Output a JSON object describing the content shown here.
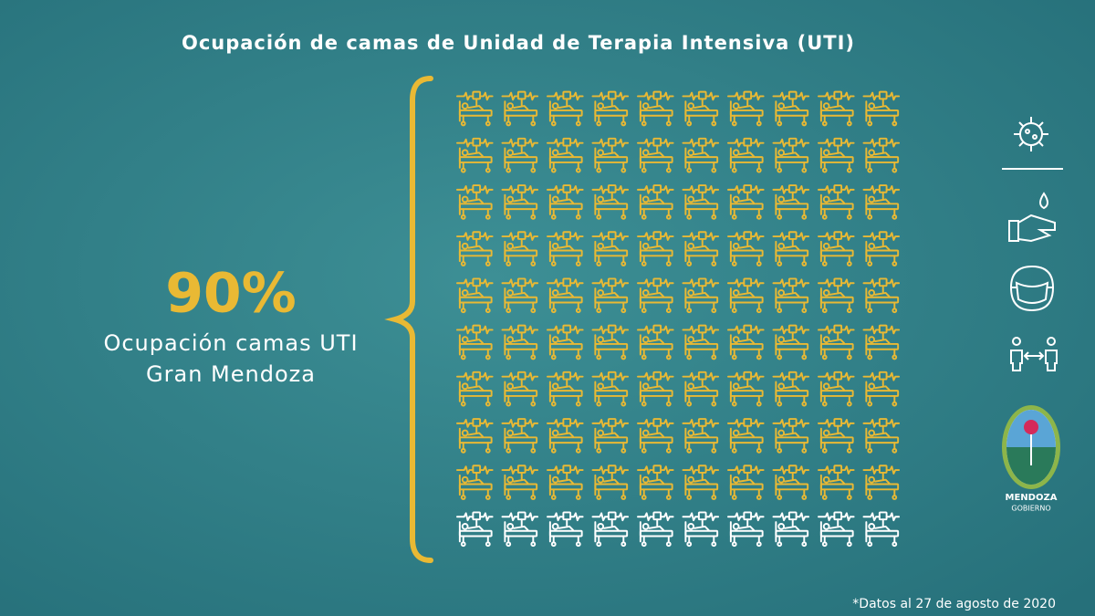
{
  "chart_data": {
    "type": "waffle",
    "title": "Ocupación de camas de Unidad de Terapia Intensiva (UTI)",
    "values": [
      90
    ],
    "value_labels": [
      "90%"
    ],
    "total": 100,
    "label_lines": [
      "Ocupación camas UTI",
      "Gran Mendoza"
    ],
    "color": "#e9b934",
    "empty_color": "#ffffff",
    "footnote": "*Datos al 27 de agosto de 2020"
  },
  "logo": {
    "lines": [
      "MENDOZA",
      "GOBIERNO"
    ]
  }
}
